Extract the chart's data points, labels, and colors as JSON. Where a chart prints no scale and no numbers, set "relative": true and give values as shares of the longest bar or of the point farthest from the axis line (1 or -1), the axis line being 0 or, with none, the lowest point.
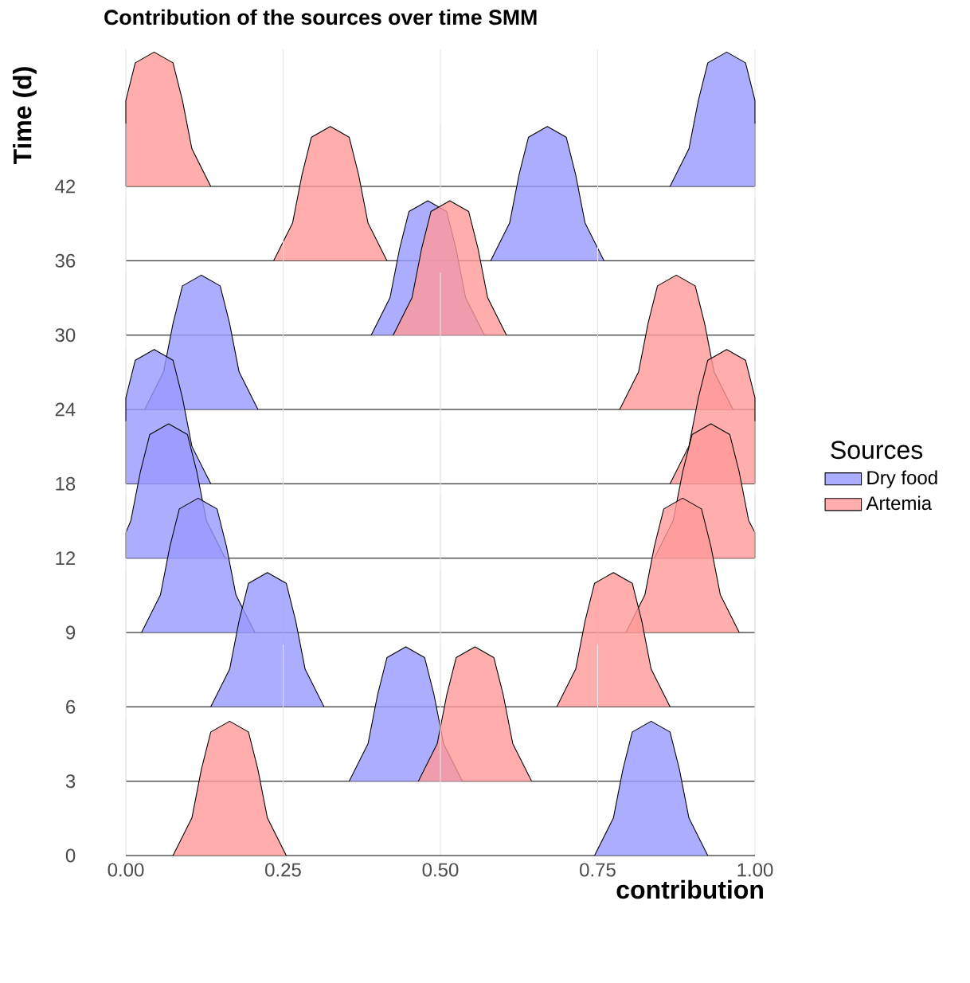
{
  "chart_data": [
    {
      "type": "area",
      "relative": true,
      "title": "Contribution of the sources over time SMM",
      "annotations": [
        "Time (d)"
      ],
      "ylabel": "42",
      "grid": "x",
      "tick_labels": false,
      "xlim": [
        0,
        1
      ],
      "xticks": [
        0,
        0.25,
        0.5,
        0.75,
        1
      ],
      "series": [
        {
          "color": "#9999ff",
          "x": [
            0.865,
            0.895,
            0.91,
            0.925,
            0.955,
            0.985,
            1,
            1
          ],
          "values": [
            0,
            0.28,
            0.64,
            0.92,
            1,
            0.92,
            0.64,
            0
          ]
        },
        {
          "color": "#ff9999",
          "x": [
            0,
            0,
            0.015,
            0.045,
            0.075,
            0.09,
            0.105,
            0.135
          ],
          "values": [
            0,
            0.64,
            0.92,
            1,
            0.92,
            0.64,
            0.28,
            0
          ]
        }
      ]
    },
    {
      "type": "area",
      "relative": true,
      "ylabel": "36",
      "grid": "x",
      "tick_labels": false,
      "xlim": [
        0,
        1
      ],
      "xticks": [
        0,
        0.25,
        0.5,
        0.75,
        1
      ],
      "series": [
        {
          "color": "#9999ff",
          "x": [
            0.58,
            0.61,
            0.625,
            0.64,
            0.67,
            0.7,
            0.715,
            0.73,
            0.76
          ],
          "values": [
            0,
            0.28,
            0.64,
            0.92,
            1,
            0.92,
            0.64,
            0.28,
            0
          ]
        },
        {
          "color": "#ff9999",
          "x": [
            0.235,
            0.265,
            0.28,
            0.295,
            0.325,
            0.355,
            0.37,
            0.385,
            0.415
          ],
          "values": [
            0,
            0.28,
            0.64,
            0.92,
            1,
            0.92,
            0.64,
            0.28,
            0
          ]
        }
      ]
    },
    {
      "type": "area",
      "relative": true,
      "ylabel": "30",
      "grid": "x",
      "tick_labels": false,
      "xlim": [
        0,
        1
      ],
      "xticks": [
        0,
        0.25,
        0.5,
        0.75,
        1
      ],
      "series": [
        {
          "color": "#9999ff",
          "x": [
            0.39,
            0.42,
            0.435,
            0.45,
            0.48,
            0.51,
            0.525,
            0.54,
            0.57
          ],
          "values": [
            0,
            0.28,
            0.64,
            0.92,
            1,
            0.92,
            0.64,
            0.28,
            0
          ]
        },
        {
          "color": "#ff9999",
          "x": [
            0.425,
            0.455,
            0.47,
            0.485,
            0.515,
            0.545,
            0.56,
            0.575,
            0.605
          ],
          "values": [
            0,
            0.28,
            0.64,
            0.92,
            1,
            0.92,
            0.64,
            0.28,
            0
          ]
        }
      ]
    },
    {
      "type": "area",
      "relative": true,
      "ylabel": "24",
      "grid": "x",
      "tick_labels": false,
      "xlim": [
        0,
        1
      ],
      "xticks": [
        0,
        0.25,
        0.5,
        0.75,
        1
      ],
      "series": [
        {
          "color": "#9999ff",
          "x": [
            0.03,
            0.06,
            0.075,
            0.09,
            0.12,
            0.15,
            0.165,
            0.18,
            0.21
          ],
          "values": [
            0,
            0.28,
            0.64,
            0.92,
            1,
            0.92,
            0.64,
            0.28,
            0
          ]
        },
        {
          "color": "#ff9999",
          "x": [
            0.785,
            0.815,
            0.83,
            0.845,
            0.875,
            0.905,
            0.92,
            0.935,
            0.965
          ],
          "values": [
            0,
            0.28,
            0.64,
            0.92,
            1,
            0.92,
            0.64,
            0.28,
            0
          ]
        }
      ]
    },
    {
      "type": "area",
      "relative": true,
      "ylabel": "18",
      "grid": "x",
      "tick_labels": false,
      "legend": "right",
      "legend_title": "Sources",
      "xlim": [
        0,
        1
      ],
      "xticks": [
        0,
        0.25,
        0.5,
        0.75,
        1
      ],
      "series": [
        {
          "name": "Dry food",
          "color": "#9999ff",
          "x": [
            0,
            0,
            0.015,
            0.045,
            0.075,
            0.09,
            0.105,
            0.135
          ],
          "values": [
            0,
            0.64,
            0.92,
            1,
            0.92,
            0.64,
            0.28,
            0
          ]
        },
        {
          "name": "Artemia",
          "color": "#ff9999",
          "x": [
            0.865,
            0.895,
            0.91,
            0.925,
            0.955,
            0.985,
            1,
            1
          ],
          "values": [
            0,
            0.28,
            0.64,
            0.92,
            1,
            0.92,
            0.64,
            0
          ]
        }
      ]
    },
    {
      "type": "area",
      "relative": true,
      "ylabel": "12",
      "grid": "x",
      "tick_labels": false,
      "xlim": [
        0,
        1
      ],
      "xticks": [
        0,
        0.25,
        0.5,
        0.75,
        1
      ],
      "series": [
        {
          "color": "#9999ff",
          "x": [
            0,
            0,
            0.008,
            0.023,
            0.038,
            0.068,
            0.098,
            0.113,
            0.128,
            0.158
          ],
          "values": [
            0,
            0.19,
            0.28,
            0.64,
            0.92,
            1,
            0.92,
            0.64,
            0.28,
            0
          ]
        },
        {
          "color": "#ff9999",
          "x": [
            0.84,
            0.87,
            0.885,
            0.9,
            0.93,
            0.96,
            0.975,
            0.99,
            1,
            1
          ],
          "values": [
            0,
            0.28,
            0.64,
            0.92,
            1,
            0.92,
            0.64,
            0.28,
            0.19,
            0
          ]
        }
      ]
    },
    {
      "type": "area",
      "relative": true,
      "ylabel": "9",
      "grid": "x",
      "tick_labels": false,
      "xlim": [
        0,
        1
      ],
      "xticks": [
        0,
        0.25,
        0.5,
        0.75,
        1
      ],
      "series": [
        {
          "color": "#9999ff",
          "x": [
            0.025,
            0.055,
            0.07,
            0.085,
            0.115,
            0.145,
            0.16,
            0.175,
            0.205
          ],
          "values": [
            0,
            0.28,
            0.64,
            0.92,
            1,
            0.92,
            0.64,
            0.28,
            0
          ]
        },
        {
          "color": "#ff9999",
          "x": [
            0.795,
            0.825,
            0.84,
            0.855,
            0.885,
            0.915,
            0.93,
            0.945,
            0.975
          ],
          "values": [
            0,
            0.28,
            0.64,
            0.92,
            1,
            0.92,
            0.64,
            0.28,
            0
          ]
        }
      ]
    },
    {
      "type": "area",
      "relative": true,
      "ylabel": "6",
      "grid": "x",
      "tick_labels": false,
      "xlim": [
        0,
        1
      ],
      "xticks": [
        0,
        0.25,
        0.5,
        0.75,
        1
      ],
      "series": [
        {
          "color": "#9999ff",
          "x": [
            0.135,
            0.165,
            0.18,
            0.195,
            0.225,
            0.255,
            0.27,
            0.285,
            0.315
          ],
          "values": [
            0,
            0.28,
            0.64,
            0.92,
            1,
            0.92,
            0.64,
            0.28,
            0
          ]
        },
        {
          "color": "#ff9999",
          "x": [
            0.685,
            0.715,
            0.73,
            0.745,
            0.775,
            0.805,
            0.82,
            0.835,
            0.865
          ],
          "values": [
            0,
            0.28,
            0.64,
            0.92,
            1,
            0.92,
            0.64,
            0.28,
            0
          ]
        }
      ]
    },
    {
      "type": "area",
      "relative": true,
      "ylabel": "3",
      "grid": "x",
      "tick_labels": false,
      "xlim": [
        0,
        1
      ],
      "xticks": [
        0,
        0.25,
        0.5,
        0.75,
        1
      ],
      "series": [
        {
          "color": "#9999ff",
          "x": [
            0.355,
            0.385,
            0.4,
            0.415,
            0.445,
            0.475,
            0.49,
            0.505,
            0.535
          ],
          "values": [
            0,
            0.28,
            0.64,
            0.92,
            1,
            0.92,
            0.64,
            0.28,
            0
          ]
        },
        {
          "color": "#ff9999",
          "x": [
            0.465,
            0.495,
            0.51,
            0.525,
            0.555,
            0.585,
            0.6,
            0.615,
            0.645
          ],
          "values": [
            0,
            0.28,
            0.64,
            0.92,
            1,
            0.92,
            0.64,
            0.28,
            0
          ]
        }
      ]
    },
    {
      "type": "area",
      "relative": true,
      "ylabel": "0",
      "xlabel": "contribution",
      "grid": "x",
      "tick_labels": "x",
      "xlim": [
        0,
        1
      ],
      "xticks": [
        {
          "value": 0,
          "label": "0.00"
        },
        {
          "value": 0.25,
          "label": "0.25"
        },
        {
          "value": 0.5,
          "label": "0.50"
        },
        {
          "value": 0.75,
          "label": "0.75"
        },
        {
          "value": 1,
          "label": "1.00"
        }
      ],
      "series": [
        {
          "color": "#9999ff",
          "x": [
            0.745,
            0.775,
            0.79,
            0.805,
            0.835,
            0.865,
            0.88,
            0.895,
            0.925
          ],
          "values": [
            0,
            0.28,
            0.64,
            0.92,
            1,
            0.92,
            0.64,
            0.28,
            0
          ]
        },
        {
          "color": "#ff9999",
          "x": [
            0.075,
            0.105,
            0.12,
            0.135,
            0.165,
            0.195,
            0.21,
            0.225,
            0.255
          ],
          "values": [
            0,
            0.28,
            0.64,
            0.92,
            1,
            0.92,
            0.64,
            0.28,
            0
          ]
        }
      ]
    }
  ]
}
